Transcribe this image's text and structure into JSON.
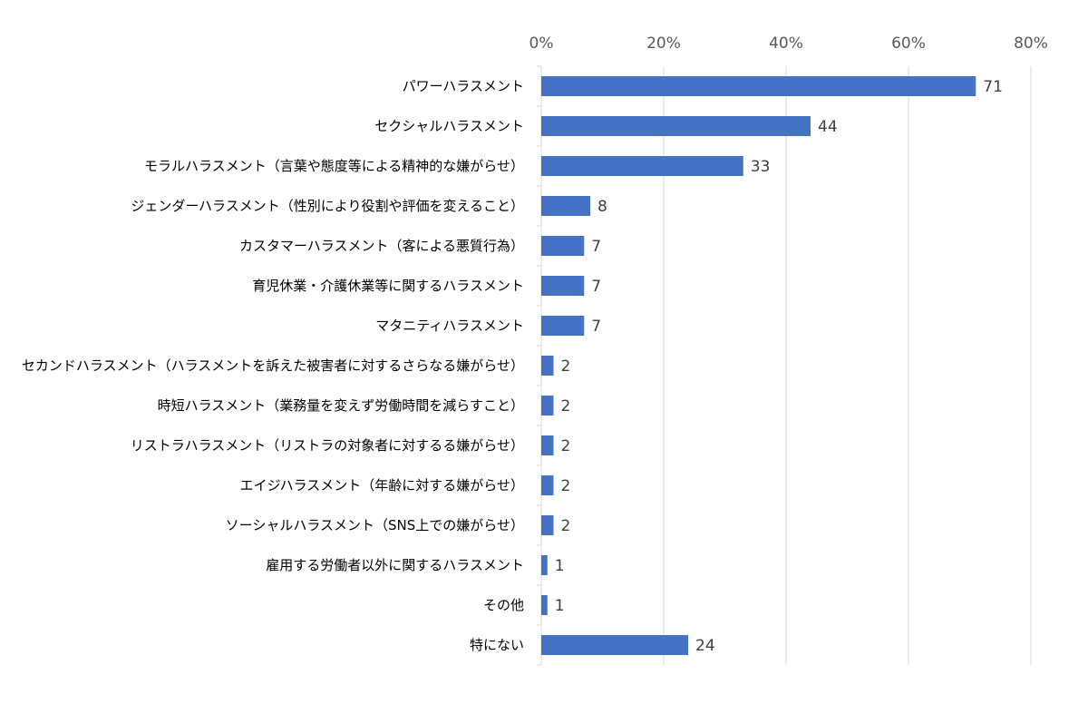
{
  "chart_data": {
    "type": "bar",
    "orientation": "horizontal",
    "title": "",
    "xlabel": "",
    "ylabel": "",
    "xlim": [
      0,
      80
    ],
    "x_ticks": [
      "0%",
      "20%",
      "40%",
      "60%",
      "80%"
    ],
    "x_axis_position": "top",
    "grid": true,
    "legend": "none",
    "bar_color": "#4472C4",
    "categories": [
      "パワーハラスメント",
      "セクシャルハラスメント",
      "モラルハラスメント（言葉や態度等による精神的な嫌がらせ）",
      "ジェンダーハラスメント（性別により役割や評価を変えること）",
      "カスタマーハラスメント（客による悪質行為）",
      "育児休業・介護休業等に関するハラスメント",
      "マタニティハラスメント",
      "セカンドハラスメント（ハラスメントを訴えた被害者に対するさらなる嫌がらせ）",
      "時短ハラスメント（業務量を変えず労働時間を減らすこと）",
      "リストラハラスメント（リストラの対象者に対するる嫌がらせ）",
      "エイジハラスメント（年齢に対する嫌がらせ）",
      "ソーシャルハラスメント（SNS上での嫌がらせ）",
      "雇用する労働者以外に関するハラスメント",
      "その他",
      "特にない"
    ],
    "values": [
      71,
      44,
      33,
      8,
      7,
      7,
      7,
      2,
      2,
      2,
      2,
      2,
      1,
      1,
      24
    ],
    "data_labels": [
      "71",
      "44",
      "33",
      "8",
      "7",
      "7",
      "7",
      "2",
      "2",
      "2",
      "2",
      "2",
      "1",
      "1",
      "24"
    ]
  }
}
